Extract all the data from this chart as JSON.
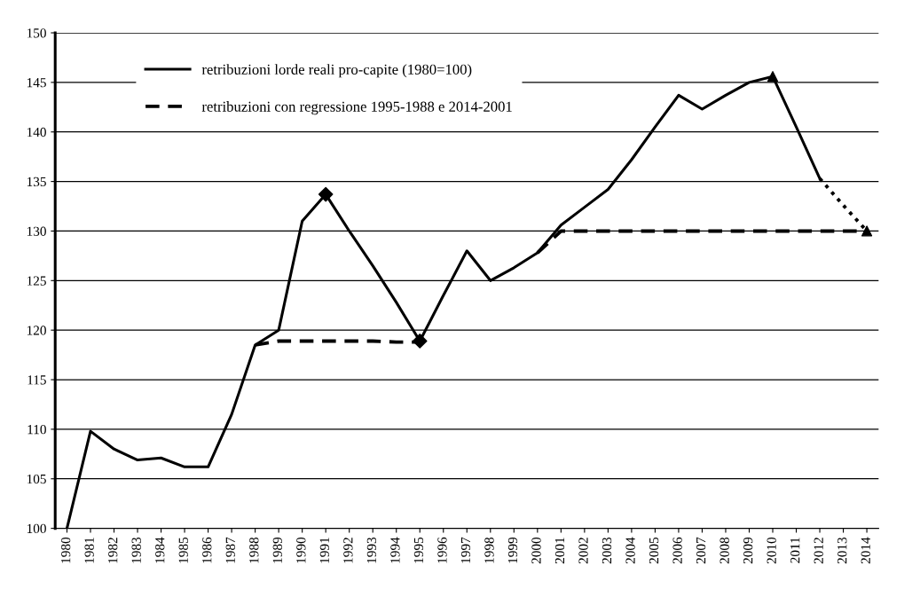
{
  "chart_data": {
    "type": "line",
    "categories": [
      "1980",
      "1981",
      "1982",
      "1983",
      "1984",
      "1985",
      "1986",
      "1987",
      "1988",
      "1989",
      "1990",
      "1991",
      "1992",
      "1993",
      "1994",
      "1995",
      "1996",
      "1997",
      "1998",
      "1999",
      "2000",
      "2001",
      "2002",
      "2003",
      "2004",
      "2005",
      "2006",
      "2007",
      "2008",
      "2009",
      "2010",
      "2011",
      "2012",
      "2013",
      "2014"
    ],
    "series": [
      {
        "name": "retribuzioni lorde reali pro-capite (1980=100)",
        "color": "#000000",
        "line_style": "solid",
        "values": [
          100,
          109.8,
          108,
          106.9,
          107.1,
          106.2,
          106.2,
          111.5,
          118.5,
          120,
          131,
          133.7,
          130,
          126.5,
          122.8,
          118.9,
          123.5,
          128,
          125,
          126.3,
          127.8,
          130.6,
          132.4,
          134.2,
          137.2,
          140.5,
          143.7,
          142.3,
          143.7,
          145,
          145.6,
          140.5,
          135.3,
          null,
          null
        ]
      },
      {
        "name": "retribuzioni con regressione 1995-1988 e 2014-2001",
        "color": "#000000",
        "line_style": "dashed",
        "values": [
          null,
          null,
          null,
          null,
          null,
          null,
          null,
          null,
          118.5,
          118.9,
          118.9,
          118.9,
          118.9,
          118.9,
          118.8,
          118.8,
          null,
          null,
          null,
          null,
          127.8,
          130,
          130,
          130,
          130,
          130,
          130,
          130,
          130,
          130,
          130,
          130,
          130,
          130,
          130
        ]
      },
      {
        "color": "#000000",
        "line_style": "dotted",
        "values": [
          null,
          null,
          null,
          null,
          null,
          null,
          null,
          null,
          null,
          null,
          null,
          null,
          null,
          null,
          null,
          null,
          null,
          null,
          null,
          null,
          null,
          null,
          null,
          null,
          null,
          null,
          null,
          null,
          null,
          null,
          null,
          null,
          135.3,
          132.6,
          130
        ]
      },
      {
        "type": "scatter",
        "marker": "diamond",
        "color": "#000000",
        "values": [
          null,
          null,
          null,
          null,
          null,
          null,
          null,
          null,
          null,
          null,
          null,
          133.7,
          null,
          null,
          null,
          118.9,
          null,
          null,
          null,
          null,
          null,
          null,
          null,
          null,
          null,
          null,
          null,
          null,
          null,
          null,
          null,
          null,
          null,
          null,
          null
        ]
      },
      {
        "type": "scatter",
        "marker": "triangle",
        "color": "#000000",
        "values": [
          null,
          null,
          null,
          null,
          null,
          null,
          null,
          null,
          null,
          null,
          null,
          null,
          null,
          null,
          null,
          null,
          null,
          null,
          null,
          null,
          null,
          null,
          null,
          null,
          null,
          null,
          null,
          null,
          null,
          null,
          145.6,
          null,
          null,
          null,
          130
        ]
      }
    ],
    "ylim": [
      100,
      150
    ],
    "yticks": [
      100,
      105,
      110,
      115,
      120,
      125,
      130,
      135,
      140,
      145,
      150
    ],
    "grid": "y",
    "legend": "top left"
  }
}
